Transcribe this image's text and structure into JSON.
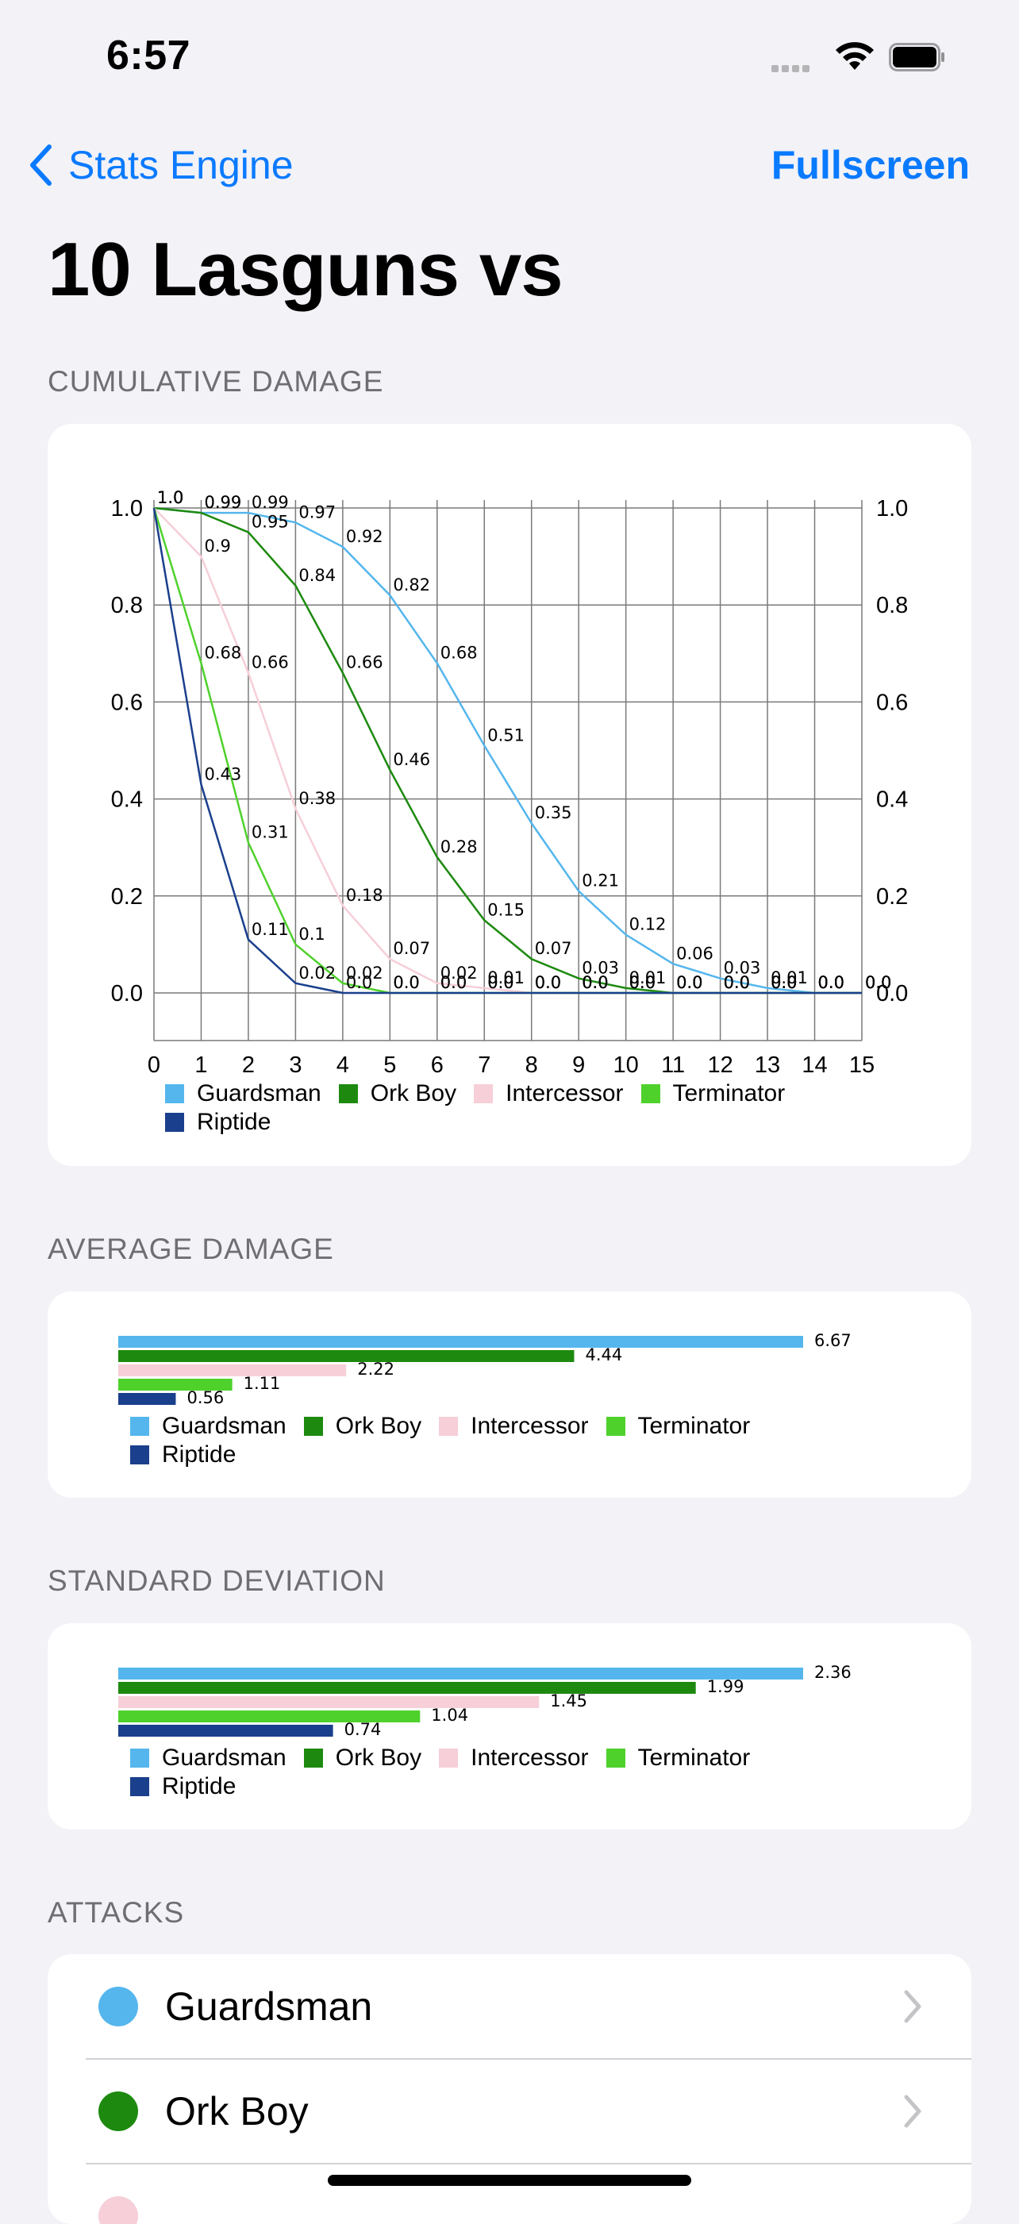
{
  "status_bar": {
    "time": "6:57"
  },
  "nav": {
    "back_label": "Stats Engine",
    "action_label": "Fullscreen"
  },
  "page": {
    "title": "10 Lasguns vs"
  },
  "colors": {
    "Guardsman": "#55b6ed",
    "Ork Boy": "#1d8a0f",
    "Intercessor": "#f6cfd8",
    "Terminator": "#4fd12c",
    "Riptide": "#1a3f8c",
    "accent": "#0a7aff"
  },
  "sections": {
    "cumulative": "CUMULATIVE DAMAGE",
    "average": "AVERAGE DAMAGE",
    "stddev": "STANDARD DEVIATION",
    "attacks": "ATTACKS"
  },
  "legend": [
    "Guardsman",
    "Ork Boy",
    "Intercessor",
    "Terminator",
    "Riptide"
  ],
  "chart_data": [
    {
      "type": "line",
      "x": [
        0,
        1,
        2,
        3,
        4,
        5,
        6,
        7,
        8,
        9,
        10,
        11,
        12,
        13,
        14,
        15
      ],
      "ylim": [
        0.0,
        1.0
      ],
      "y_ticks": [
        "0.0",
        "0.2",
        "0.4",
        "0.6",
        "0.8",
        "1.0"
      ],
      "x_ticks": [
        "0",
        "1",
        "2",
        "3",
        "4",
        "5",
        "6",
        "7",
        "8",
        "9",
        "10",
        "11",
        "12",
        "13",
        "14",
        "15"
      ],
      "grid": true,
      "legend_position": "bottom",
      "series": [
        {
          "name": "Guardsman",
          "values": [
            1.0,
            0.99,
            0.99,
            0.97,
            0.92,
            0.82,
            0.68,
            0.51,
            0.35,
            0.21,
            0.12,
            0.06,
            0.03,
            0.01,
            0.0,
            0.0
          ]
        },
        {
          "name": "Ork Boy",
          "values": [
            1.0,
            0.99,
            0.95,
            0.84,
            0.66,
            0.46,
            0.28,
            0.15,
            0.07,
            0.03,
            0.01,
            0.0,
            0.0,
            0.0,
            0.0,
            0.0
          ]
        },
        {
          "name": "Intercessor",
          "values": [
            1.0,
            0.9,
            0.66,
            0.38,
            0.18,
            0.07,
            0.02,
            0.01,
            0.0,
            0.0,
            0.0,
            0.0,
            0.0,
            0.0,
            0.0,
            0.0
          ]
        },
        {
          "name": "Terminator",
          "values": [
            1.0,
            0.68,
            0.31,
            0.1,
            0.02,
            0.0,
            0.0,
            0.0,
            0.0,
            0.0,
            0.0,
            0.0,
            0.0,
            0.0,
            0.0,
            0.0
          ]
        },
        {
          "name": "Riptide",
          "values": [
            1.0,
            0.43,
            0.11,
            0.02,
            0.0,
            0.0,
            0.0,
            0.0,
            0.0,
            0.0,
            0.0,
            0.0,
            0.0,
            0.0,
            0.0,
            0.0
          ]
        }
      ]
    },
    {
      "type": "bar",
      "orientation": "horizontal",
      "categories": [
        "Guardsman",
        "Ork Boy",
        "Intercessor",
        "Terminator",
        "Riptide"
      ],
      "values": [
        6.67,
        4.44,
        2.22,
        1.11,
        0.56
      ]
    },
    {
      "type": "bar",
      "orientation": "horizontal",
      "categories": [
        "Guardsman",
        "Ork Boy",
        "Intercessor",
        "Terminator",
        "Riptide"
      ],
      "values": [
        2.36,
        1.99,
        1.45,
        1.04,
        0.74
      ]
    }
  ],
  "attacks": {
    "items": [
      {
        "label": "Guardsman",
        "color": "#55b6ed"
      },
      {
        "label": "Ork Boy",
        "color": "#1d8a0f"
      },
      {
        "label": "",
        "color": "#f6cfd8"
      }
    ]
  }
}
